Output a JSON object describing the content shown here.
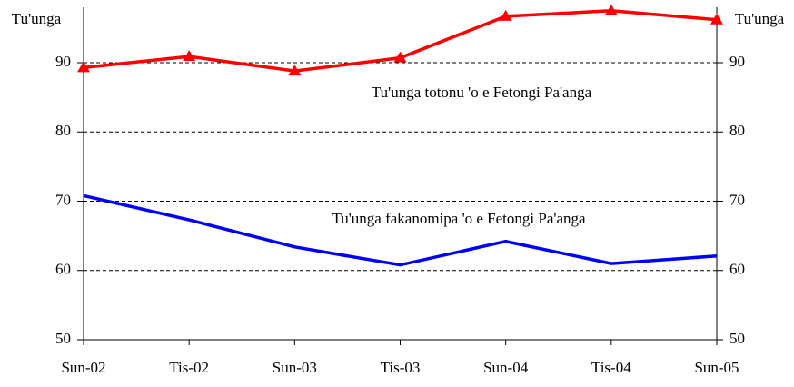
{
  "chart_data": {
    "type": "line",
    "ylabel": "Tu'unga",
    "y2label": "Tu'unga",
    "categories": [
      "Sun-02",
      "Tis-02",
      "Sun-03",
      "Tis-03",
      "Sun-04",
      "Tis-04",
      "Sun-05"
    ],
    "series": [
      {
        "name": "Tu'unga totonu 'o e Fetongi Pa'anga",
        "color": "#ff0000",
        "marker": "triangle",
        "values": [
          89.3,
          90.9,
          88.8,
          90.7,
          96.7,
          97.5,
          96.2
        ]
      },
      {
        "name": "Tu'unga fakanomipa 'o e Fetongi Pa'anga",
        "color": "#0000ff",
        "values": [
          70.8,
          67.3,
          63.4,
          60.8,
          64.2,
          61.0,
          62.1
        ]
      }
    ],
    "ylim": [
      50,
      98
    ],
    "yticks": [
      50,
      60,
      70,
      80,
      90
    ],
    "y2lim": [
      50,
      98
    ],
    "y2ticks": [
      50,
      60,
      70,
      80,
      90
    ],
    "grid": true
  }
}
